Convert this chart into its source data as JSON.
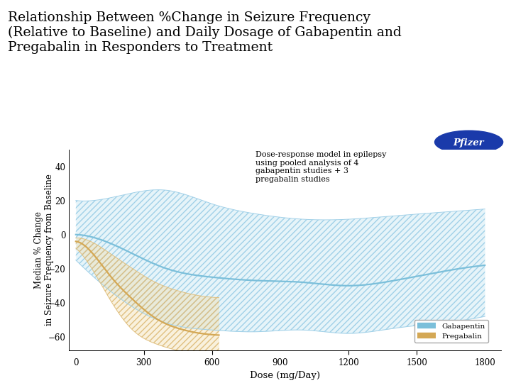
{
  "title": "Relationship Between %Change in Seizure Frequency\n(Relative to Baseline) and Daily Dosage of Gabapentin and\nPregabalin in Responders to Treatment",
  "xlabel": "Dose (mg/Day)",
  "ylabel": "Median % Change\nin Seizure Frequency from Baseline",
  "xlim": [
    -30,
    1870
  ],
  "ylim": [
    -68,
    50
  ],
  "yticks": [
    40,
    20,
    0,
    -20,
    -40,
    -60
  ],
  "xticks": [
    0,
    300,
    600,
    900,
    1200,
    1500,
    1800
  ],
  "annotation": "Dose-response model in epilepsy\nusing pooled analysis of 4\ngabapentin studies + 3\npregabalin studies",
  "gabapentin_fill_color": "#B8E0EE",
  "gabapentin_hatch_color": "#A0D0E8",
  "gabapentin_line_color": "#7BBFDA",
  "pregabalin_fill_color": "#F0D8A0",
  "pregabalin_hatch_color": "#E0C080",
  "pregabalin_line_color": "#D4A855",
  "background_color": "#ffffff",
  "blue_bar_color": "#1a3aaa",
  "pfizer_oval_color": "#1a3aaa",
  "x_gaba": [
    0,
    200,
    400,
    600,
    800,
    1000,
    1200,
    1400,
    1600,
    1800
  ],
  "y_gaba_med": [
    0,
    -8,
    -20,
    -25,
    -27,
    -28,
    -30,
    -27,
    -22,
    -18
  ],
  "y_gaba_upper": [
    20,
    23,
    26,
    18,
    12,
    9,
    9,
    11,
    13,
    15
  ],
  "y_gaba_lower": [
    -15,
    -38,
    -52,
    -56,
    -57,
    -56,
    -58,
    -55,
    -52,
    -48
  ],
  "x_prega": [
    0,
    80,
    150,
    250,
    350,
    450,
    550,
    630
  ],
  "y_prega_med": [
    -4,
    -12,
    -24,
    -38,
    -49,
    -55,
    -58,
    -59
  ],
  "y_prega_upper": [
    -2,
    -5,
    -11,
    -20,
    -28,
    -33,
    -36,
    -37
  ],
  "y_prega_lower": [
    -8,
    -22,
    -38,
    -56,
    -64,
    -68,
    -70,
    -70
  ]
}
